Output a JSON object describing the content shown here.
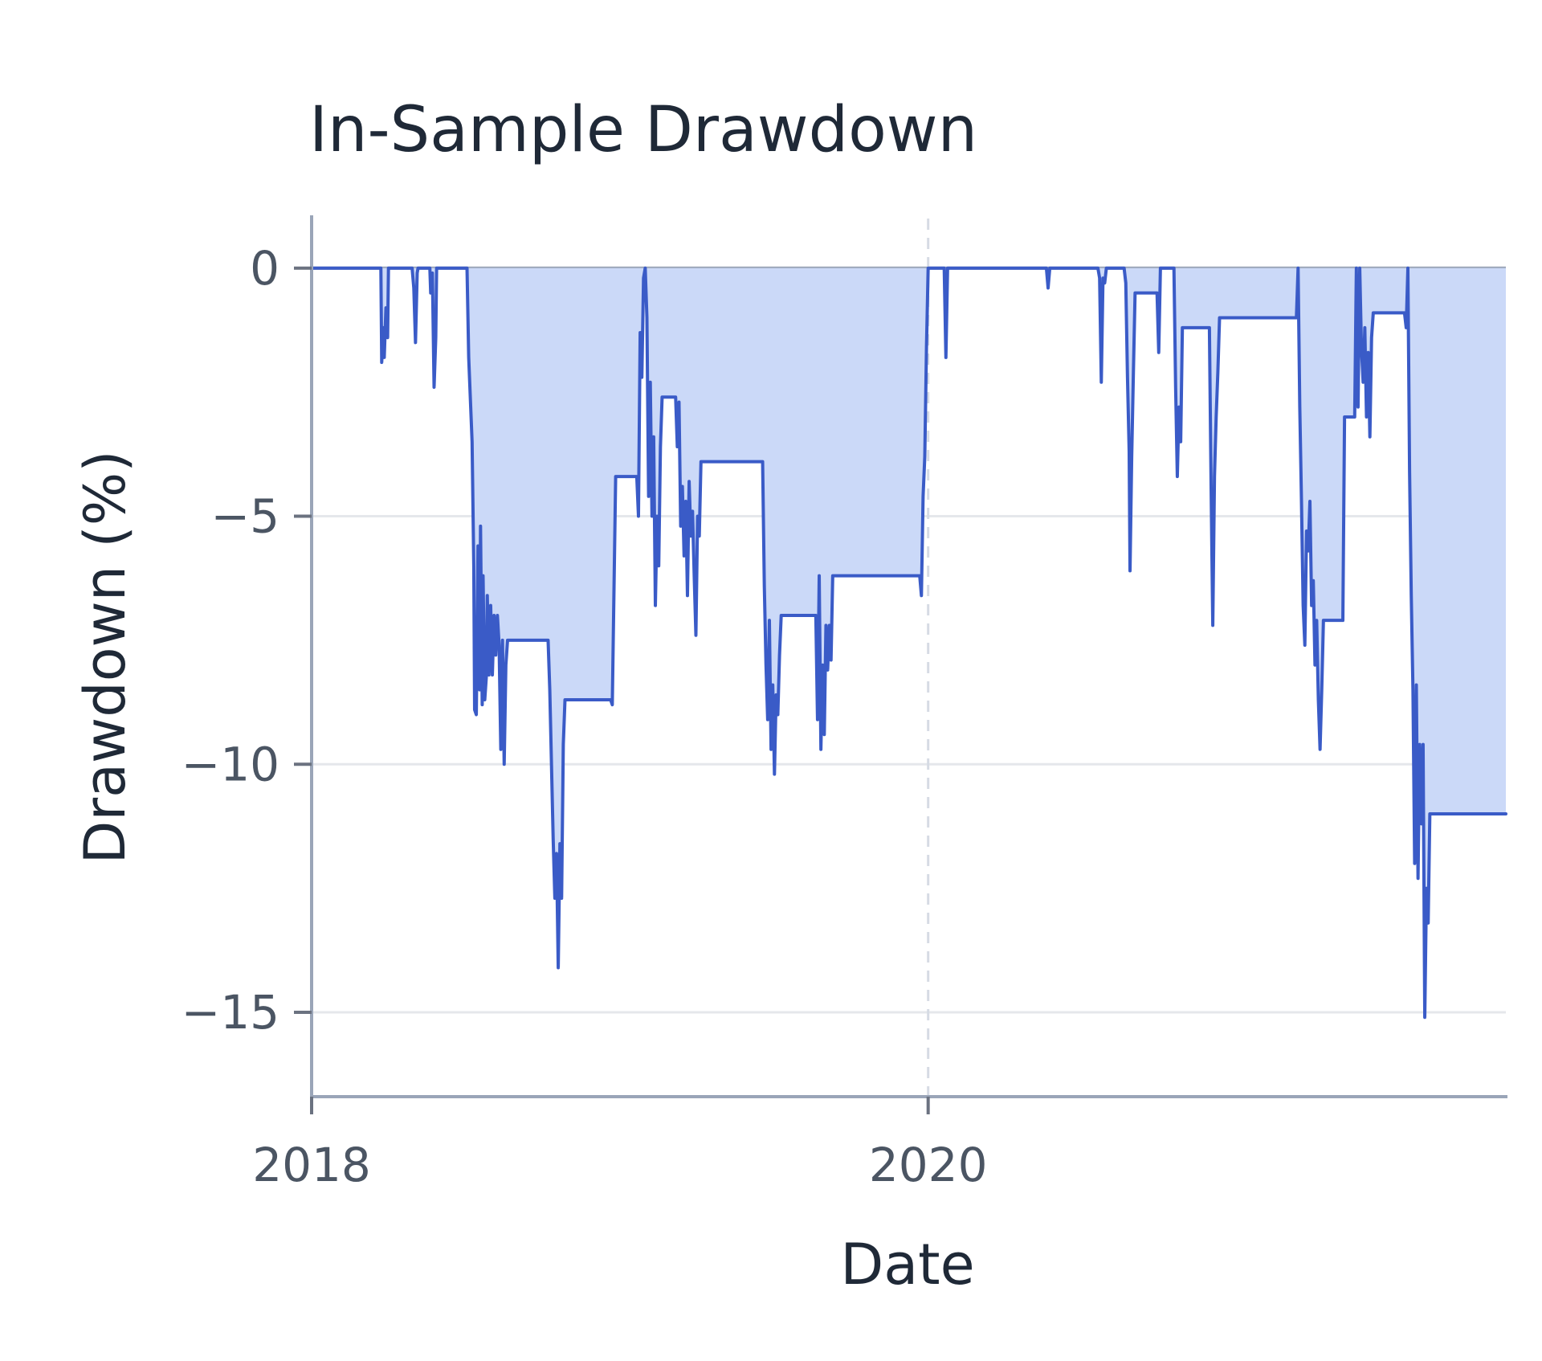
{
  "chart_data": {
    "type": "area",
    "title": "In-Sample Drawdown",
    "xlabel": "Date",
    "ylabel": "Drawdown (%)",
    "x_ticks": [
      "2018",
      "2020"
    ],
    "y_ticks": [
      0,
      -5,
      -10,
      -15
    ],
    "xlim": [
      "2018-01-01",
      "2021-11-15"
    ],
    "ylim": [
      -16.7,
      1.0
    ],
    "grid": "horizontal",
    "vertical_reference_at": "2020-01-01",
    "colors": {
      "line": "#3a5bc7",
      "fill": "#cbd9f8",
      "grid": "#e5e7eb",
      "axis": "#9aa5b8",
      "reference": "#d6dbe4"
    },
    "series": [
      {
        "values": [
          [
            "2018-01-01",
            0.0
          ],
          [
            "2018-03-24",
            0.0
          ],
          [
            "2018-03-25",
            -1.9
          ],
          [
            "2018-03-27",
            -1.2
          ],
          [
            "2018-03-28",
            -1.8
          ],
          [
            "2018-03-30",
            -0.8
          ],
          [
            "2018-04-01",
            -1.4
          ],
          [
            "2018-04-02",
            0.0
          ],
          [
            "2018-04-30",
            0.0
          ],
          [
            "2018-05-02",
            -0.4
          ],
          [
            "2018-05-04",
            -1.5
          ],
          [
            "2018-05-06",
            -0.1
          ],
          [
            "2018-05-07",
            0.0
          ],
          [
            "2018-05-21",
            0.0
          ],
          [
            "2018-05-22",
            -0.5
          ],
          [
            "2018-05-24",
            -0.1
          ],
          [
            "2018-05-26",
            -2.4
          ],
          [
            "2018-05-28",
            -1.4
          ],
          [
            "2018-05-29",
            0.0
          ],
          [
            "2018-07-04",
            0.0
          ],
          [
            "2018-07-06",
            -1.8
          ],
          [
            "2018-07-10",
            -3.5
          ],
          [
            "2018-07-12",
            -6.0
          ],
          [
            "2018-07-13",
            -8.9
          ],
          [
            "2018-07-15",
            -9.0
          ],
          [
            "2018-07-17",
            -5.6
          ],
          [
            "2018-07-19",
            -8.5
          ],
          [
            "2018-07-20",
            -5.2
          ],
          [
            "2018-07-22",
            -8.8
          ],
          [
            "2018-07-23",
            -6.2
          ],
          [
            "2018-07-25",
            -8.7
          ],
          [
            "2018-07-27",
            -8.2
          ],
          [
            "2018-07-28",
            -6.6
          ],
          [
            "2018-07-30",
            -8.2
          ],
          [
            "2018-08-01",
            -6.8
          ],
          [
            "2018-08-03",
            -8.2
          ],
          [
            "2018-08-05",
            -7.0
          ],
          [
            "2018-08-07",
            -7.8
          ],
          [
            "2018-08-09",
            -7.0
          ],
          [
            "2018-08-11",
            -7.6
          ],
          [
            "2018-08-13",
            -9.7
          ],
          [
            "2018-08-15",
            -7.5
          ],
          [
            "2018-08-17",
            -10.0
          ],
          [
            "2018-08-19",
            -8.0
          ],
          [
            "2018-08-21",
            -7.5
          ],
          [
            "2018-10-08",
            -7.5
          ],
          [
            "2018-10-10",
            -8.5
          ],
          [
            "2018-10-12",
            -10.0
          ],
          [
            "2018-10-14",
            -11.5
          ],
          [
            "2018-10-16",
            -12.7
          ],
          [
            "2018-10-18",
            -11.8
          ],
          [
            "2018-10-20",
            -14.1
          ],
          [
            "2018-10-22",
            -11.6
          ],
          [
            "2018-10-24",
            -12.7
          ],
          [
            "2018-10-26",
            -9.6
          ],
          [
            "2018-10-28",
            -8.7
          ],
          [
            "2018-12-21",
            -8.7
          ],
          [
            "2018-12-23",
            -8.8
          ],
          [
            "2018-12-27",
            -4.2
          ],
          [
            "2019-01-21",
            -4.2
          ],
          [
            "2019-01-23",
            -5.0
          ],
          [
            "2019-01-25",
            -1.3
          ],
          [
            "2019-01-27",
            -2.2
          ],
          [
            "2019-01-29",
            -0.2
          ],
          [
            "2019-01-31",
            0.0
          ],
          [
            "2019-02-02",
            -1.0
          ],
          [
            "2019-02-04",
            -4.6
          ],
          [
            "2019-02-06",
            -2.3
          ],
          [
            "2019-02-08",
            -5.0
          ],
          [
            "2019-02-10",
            -3.4
          ],
          [
            "2019-02-12",
            -6.8
          ],
          [
            "2019-02-14",
            -5.0
          ],
          [
            "2019-02-16",
            -6.0
          ],
          [
            "2019-02-18",
            -3.6
          ],
          [
            "2019-02-20",
            -2.6
          ],
          [
            "2019-03-08",
            -2.6
          ],
          [
            "2019-03-10",
            -3.6
          ],
          [
            "2019-03-12",
            -2.7
          ],
          [
            "2019-03-14",
            -5.2
          ],
          [
            "2019-03-16",
            -4.4
          ],
          [
            "2019-03-18",
            -5.8
          ],
          [
            "2019-03-20",
            -4.7
          ],
          [
            "2019-03-22",
            -6.6
          ],
          [
            "2019-03-24",
            -4.3
          ],
          [
            "2019-03-26",
            -5.4
          ],
          [
            "2019-03-28",
            -4.9
          ],
          [
            "2019-03-30",
            -6.2
          ],
          [
            "2019-04-01",
            -7.4
          ],
          [
            "2019-04-03",
            -5.0
          ],
          [
            "2019-04-05",
            -5.4
          ],
          [
            "2019-04-07",
            -3.9
          ],
          [
            "2019-06-19",
            -3.9
          ],
          [
            "2019-06-21",
            -6.4
          ],
          [
            "2019-06-23",
            -8.0
          ],
          [
            "2019-06-25",
            -9.1
          ],
          [
            "2019-06-27",
            -7.1
          ],
          [
            "2019-06-29",
            -9.7
          ],
          [
            "2019-07-01",
            -8.4
          ],
          [
            "2019-07-03",
            -10.2
          ],
          [
            "2019-07-05",
            -8.6
          ],
          [
            "2019-07-07",
            -9.0
          ],
          [
            "2019-07-09",
            -7.8
          ],
          [
            "2019-07-11",
            -7.0
          ],
          [
            "2019-08-21",
            -7.0
          ],
          [
            "2019-08-23",
            -9.1
          ],
          [
            "2019-08-25",
            -6.2
          ],
          [
            "2019-08-27",
            -9.7
          ],
          [
            "2019-08-29",
            -8.0
          ],
          [
            "2019-08-31",
            -9.4
          ],
          [
            "2019-09-02",
            -7.2
          ],
          [
            "2019-09-04",
            -8.1
          ],
          [
            "2019-09-06",
            -7.2
          ],
          [
            "2019-09-08",
            -7.9
          ],
          [
            "2019-09-10",
            -6.2
          ],
          [
            "2019-12-22",
            -6.2
          ],
          [
            "2019-12-24",
            -6.6
          ],
          [
            "2019-12-26",
            -4.6
          ],
          [
            "2019-12-28",
            -3.8
          ],
          [
            "2019-12-30",
            -1.6
          ],
          [
            "2020-01-01",
            0.0
          ],
          [
            "2020-01-20",
            0.0
          ],
          [
            "2020-01-22",
            -1.8
          ],
          [
            "2020-01-24",
            0.0
          ],
          [
            "2020-05-20",
            0.0
          ],
          [
            "2020-05-22",
            -0.4
          ],
          [
            "2020-05-24",
            0.0
          ],
          [
            "2020-07-20",
            0.0
          ],
          [
            "2020-07-22",
            -0.2
          ],
          [
            "2020-07-24",
            -2.3
          ],
          [
            "2020-07-26",
            -0.2
          ],
          [
            "2020-07-28",
            -0.3
          ],
          [
            "2020-07-30",
            0.0
          ],
          [
            "2020-08-20",
            0.0
          ],
          [
            "2020-08-22",
            -0.3
          ],
          [
            "2020-08-24",
            -2.2
          ],
          [
            "2020-08-26",
            -3.7
          ],
          [
            "2020-08-27",
            -6.1
          ],
          [
            "2020-08-29",
            -3.8
          ],
          [
            "2020-08-31",
            -2.1
          ],
          [
            "2020-09-02",
            -0.5
          ],
          [
            "2020-09-28",
            -0.5
          ],
          [
            "2020-09-30",
            -1.7
          ],
          [
            "2020-10-02",
            0.0
          ],
          [
            "2020-10-18",
            0.0
          ],
          [
            "2020-10-20",
            -2.4
          ],
          [
            "2020-10-22",
            -4.2
          ],
          [
            "2020-10-24",
            -2.8
          ],
          [
            "2020-10-26",
            -3.5
          ],
          [
            "2020-10-28",
            -1.2
          ],
          [
            "2020-11-29",
            -1.2
          ],
          [
            "2020-12-01",
            -4.4
          ],
          [
            "2020-12-03",
            -7.2
          ],
          [
            "2020-12-05",
            -4.2
          ],
          [
            "2020-12-07",
            -3.0
          ],
          [
            "2020-12-09",
            -2.1
          ],
          [
            "2020-12-11",
            -1.0
          ],
          [
            "2021-03-12",
            -1.0
          ],
          [
            "2021-03-14",
            0.0
          ],
          [
            "2021-03-16",
            -2.8
          ],
          [
            "2021-03-18",
            -4.7
          ],
          [
            "2021-03-20",
            -6.8
          ],
          [
            "2021-03-22",
            -7.6
          ],
          [
            "2021-03-24",
            -5.3
          ],
          [
            "2021-03-26",
            -5.7
          ],
          [
            "2021-03-28",
            -4.7
          ],
          [
            "2021-03-30",
            -6.8
          ],
          [
            "2021-04-01",
            -6.3
          ],
          [
            "2021-04-03",
            -8.0
          ],
          [
            "2021-04-05",
            -7.1
          ],
          [
            "2021-04-07",
            -8.7
          ],
          [
            "2021-04-09",
            -9.7
          ],
          [
            "2021-04-11",
            -8.5
          ],
          [
            "2021-04-13",
            -7.1
          ],
          [
            "2021-05-06",
            -7.1
          ],
          [
            "2021-05-08",
            -3.0
          ],
          [
            "2021-05-20",
            -3.0
          ],
          [
            "2021-05-22",
            0.0
          ],
          [
            "2021-05-24",
            -2.8
          ],
          [
            "2021-05-26",
            0.0
          ],
          [
            "2021-05-28",
            -1.6
          ],
          [
            "2021-05-30",
            -2.3
          ],
          [
            "2021-06-01",
            -1.2
          ],
          [
            "2021-06-03",
            -3.0
          ],
          [
            "2021-06-05",
            -1.7
          ],
          [
            "2021-06-07",
            -3.4
          ],
          [
            "2021-06-09",
            -1.4
          ],
          [
            "2021-06-11",
            -0.9
          ],
          [
            "2021-07-18",
            -0.9
          ],
          [
            "2021-07-20",
            -1.2
          ],
          [
            "2021-07-22",
            0.0
          ],
          [
            "2021-07-24",
            -4.1
          ],
          [
            "2021-07-26",
            -6.6
          ],
          [
            "2021-07-28",
            -8.5
          ],
          [
            "2021-07-30",
            -12.0
          ],
          [
            "2021-08-01",
            -8.4
          ],
          [
            "2021-08-03",
            -12.3
          ],
          [
            "2021-08-05",
            -9.6
          ],
          [
            "2021-08-07",
            -11.2
          ],
          [
            "2021-08-09",
            -9.6
          ],
          [
            "2021-08-11",
            -15.1
          ],
          [
            "2021-08-13",
            -12.5
          ],
          [
            "2021-08-15",
            -13.2
          ],
          [
            "2021-08-17",
            -11.0
          ],
          [
            "2021-11-15",
            -11.0
          ]
        ]
      }
    ]
  }
}
